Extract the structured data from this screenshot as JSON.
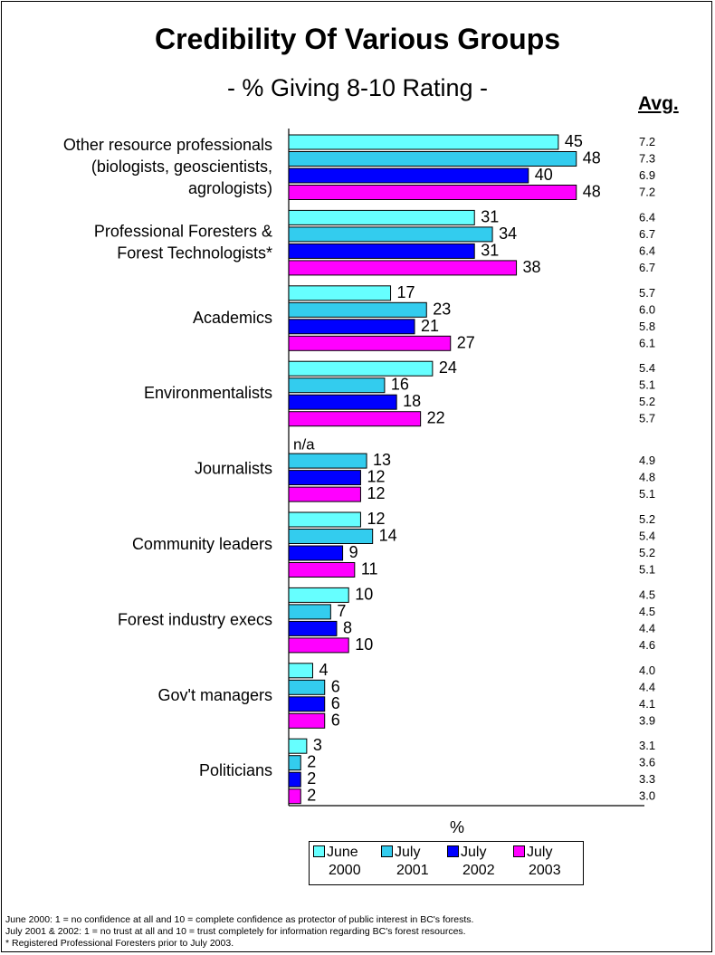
{
  "page": {
    "title": "Credibility Of Various Groups",
    "subtitle": "- % Giving 8-10 Rating -",
    "avg_header": "Avg.",
    "notes": [
      "June 2000: 1 = no confidence at all and 10 = complete confidence as protector of public interest in BC's forests.",
      "July 2001 & 2002: 1 = no trust at all and 10 = trust completely for information regarding BC's forest resources.",
      "* Registered Professional Foresters prior to July 2003."
    ]
  },
  "chart_data": {
    "type": "bar",
    "orientation": "horizontal",
    "title": "Credibility Of Various Groups",
    "subtitle": "- % Giving 8-10 Rating -",
    "xlabel": "%",
    "xlim": [
      0,
      59
    ],
    "grid": false,
    "legend_position": "bottom",
    "na_label": "n/a",
    "categories": [
      [
        "Other resource professionals",
        "(biologists, geoscientists,",
        "agrologists)"
      ],
      [
        "Professional Foresters &",
        "Forest Technologists*"
      ],
      [
        "Academics"
      ],
      [
        "Environmentalists"
      ],
      [
        "Journalists"
      ],
      [
        "Community leaders"
      ],
      [
        "Forest industry execs"
      ],
      [
        "Gov't managers"
      ],
      [
        "Politicians"
      ]
    ],
    "series": [
      {
        "name": "June 2000",
        "legend_lines": [
          "June",
          "2000"
        ],
        "color": "#66ffff",
        "values": [
          45,
          31,
          17,
          24,
          null,
          12,
          10,
          4,
          3
        ]
      },
      {
        "name": "July 2001",
        "legend_lines": [
          "July",
          "2001"
        ],
        "color": "#33ccee",
        "values": [
          48,
          34,
          23,
          16,
          13,
          14,
          7,
          6,
          2
        ]
      },
      {
        "name": "July 2002",
        "legend_lines": [
          "July",
          "2002"
        ],
        "color": "#0000ff",
        "values": [
          40,
          31,
          21,
          18,
          12,
          9,
          8,
          6,
          2
        ]
      },
      {
        "name": "July 2003",
        "legend_lines": [
          "July",
          "2003"
        ],
        "color": "#ff00ff",
        "values": [
          48,
          38,
          27,
          22,
          12,
          11,
          10,
          6,
          2
        ]
      }
    ],
    "averages": [
      [
        "7.2",
        "7.3",
        "6.9",
        "7.2"
      ],
      [
        "6.4",
        "6.7",
        "6.4",
        "6.7"
      ],
      [
        "5.7",
        "6.0",
        "5.8",
        "6.1"
      ],
      [
        "5.4",
        "5.1",
        "5.2",
        "5.7"
      ],
      [
        "4.9",
        "4.8",
        "5.1"
      ],
      [
        "5.2",
        "5.4",
        "5.2",
        "5.1"
      ],
      [
        "4.5",
        "4.5",
        "4.4",
        "4.6"
      ],
      [
        "4.0",
        "4.4",
        "4.1",
        "3.9"
      ],
      [
        "3.1",
        "3.6",
        "3.3",
        "3.0"
      ]
    ]
  }
}
